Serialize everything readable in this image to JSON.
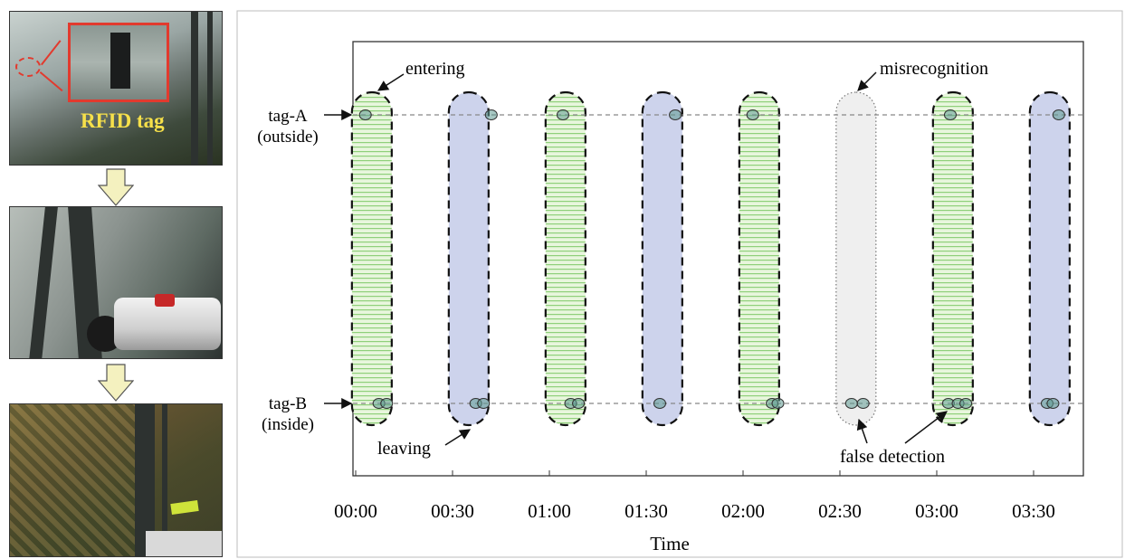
{
  "photos": {
    "panel_1_label": "RFID tag",
    "panel_2_label": "",
    "panel_3_label": ""
  },
  "colors": {
    "entering_fill": "#cfeec1",
    "entering_stripe": "#8fd07a",
    "leaving_fill": "#cdd3ec",
    "misrecognition_fill": "#efefef",
    "tag_detection": "#5f9a92",
    "arrow": "#f4f1bf",
    "rfid_label": "#f6e04a",
    "tag_outline": "#e23a2e"
  },
  "chart_data": {
    "type": "timeline",
    "xlabel": "Time",
    "x_ticks": [
      "00:00",
      "00:30",
      "01:00",
      "01:30",
      "02:00",
      "02:30",
      "03:00",
      "03:30"
    ],
    "rows": [
      "tag-A\n(outside)",
      "tag-B\n(inside)"
    ],
    "row_labels": [
      {
        "line1": "tag-A",
        "line2": "(outside)"
      },
      {
        "line1": "tag-B",
        "line2": "(inside)"
      }
    ],
    "events": [
      {
        "type": "entering",
        "time": "00:05",
        "tagA": [
          0.05
        ],
        "tagB": [
          0.12,
          0.16
        ]
      },
      {
        "type": "leaving",
        "time": "00:35",
        "tagA": [
          0.7
        ],
        "tagB": [
          0.62,
          0.66
        ]
      },
      {
        "type": "entering",
        "time": "01:05",
        "tagA": [
          1.07
        ],
        "tagB": [
          1.11,
          1.15
        ]
      },
      {
        "type": "leaving",
        "time": "01:35",
        "tagA": [
          1.65
        ],
        "tagB": [
          1.57
        ]
      },
      {
        "type": "entering",
        "time": "02:05",
        "tagA": [
          2.05
        ],
        "tagB": [
          2.15,
          2.18
        ]
      },
      {
        "type": "misrecognition",
        "time": "02:35",
        "tagA": [],
        "tagB": [
          2.56,
          2.62
        ]
      },
      {
        "type": "entering",
        "time": "03:05",
        "tagA": [
          3.07
        ],
        "tagB": [
          3.06,
          3.11,
          3.15
        ]
      },
      {
        "type": "leaving",
        "time": "03:35",
        "tagA": [
          3.63
        ],
        "tagB": [
          3.57,
          3.6
        ]
      }
    ],
    "annotations": [
      {
        "text": "entering",
        "target_event": 0
      },
      {
        "text": "misrecognition",
        "target_event": 5
      },
      {
        "text": "leaving",
        "target_event": 1
      },
      {
        "text": "false detection",
        "target_event": [
          5,
          6
        ]
      }
    ],
    "grid": false
  }
}
